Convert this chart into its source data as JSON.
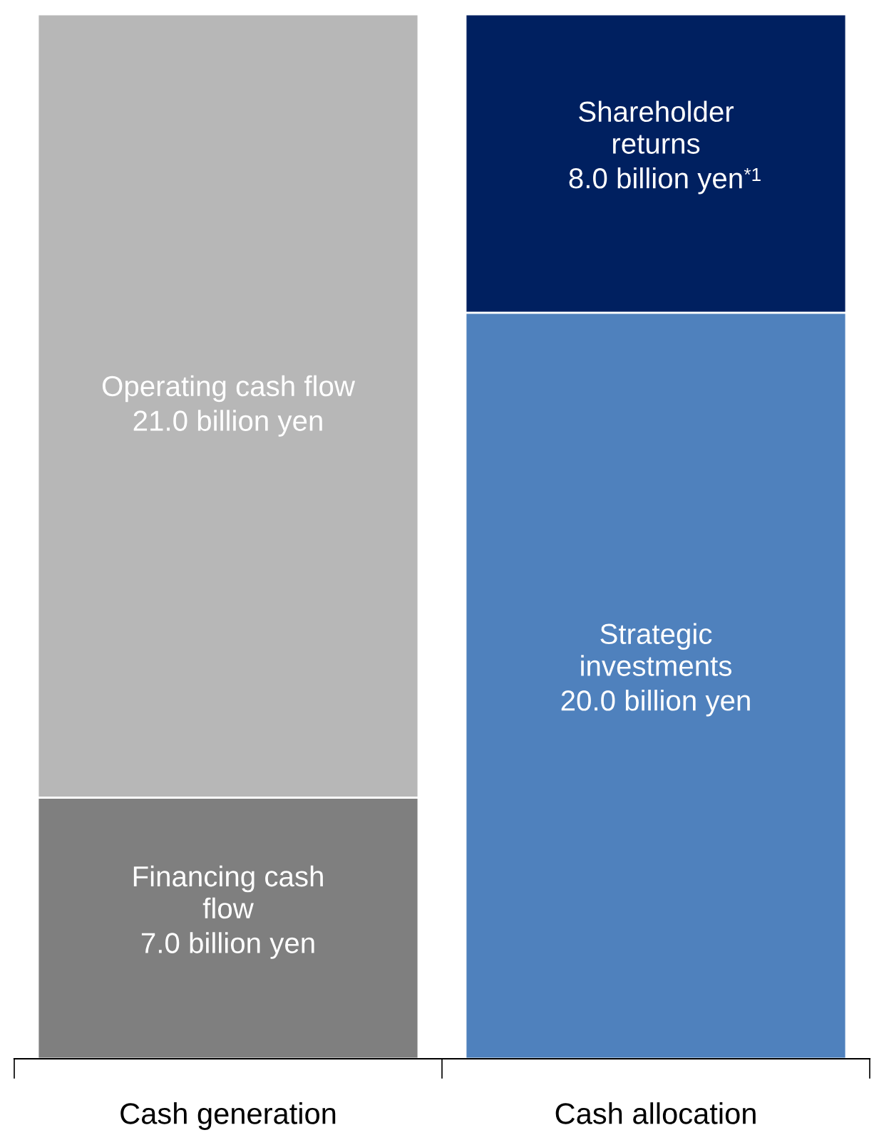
{
  "chart_data": {
    "type": "bar",
    "categories": [
      "Cash generation",
      "Cash allocation"
    ],
    "stacked": true,
    "tick_labels": "x",
    "grid": false,
    "legend": false,
    "series": [
      {
        "name": "Financing cash\nflow",
        "colors": [
          "#7f7f7f",
          "#7f7f7f"
        ],
        "values": [
          7.0,
          null
        ],
        "value_labels": [
          "7.0 billion yen",
          null
        ]
      },
      {
        "name": "Strategic\ninvestments",
        "colors": [
          "#4f81bd",
          "#4f81bd"
        ],
        "values": [
          null,
          20.0
        ],
        "value_labels": [
          null,
          "20.0 billion yen"
        ]
      },
      {
        "name": "Operating cash flow",
        "colors": [
          "#b7b7b7",
          "#b7b7b7"
        ],
        "values": [
          21.0,
          null
        ],
        "value_labels": [
          "21.0 billion yen",
          null
        ]
      },
      {
        "name": "Shareholder\nreturns",
        "colors": [
          "#002060",
          "#002060"
        ],
        "values": [
          null,
          8.0
        ],
        "value_labels": [
          null,
          "8.0 billion yen"
        ]
      }
    ],
    "annotations": [
      "*1"
    ]
  }
}
